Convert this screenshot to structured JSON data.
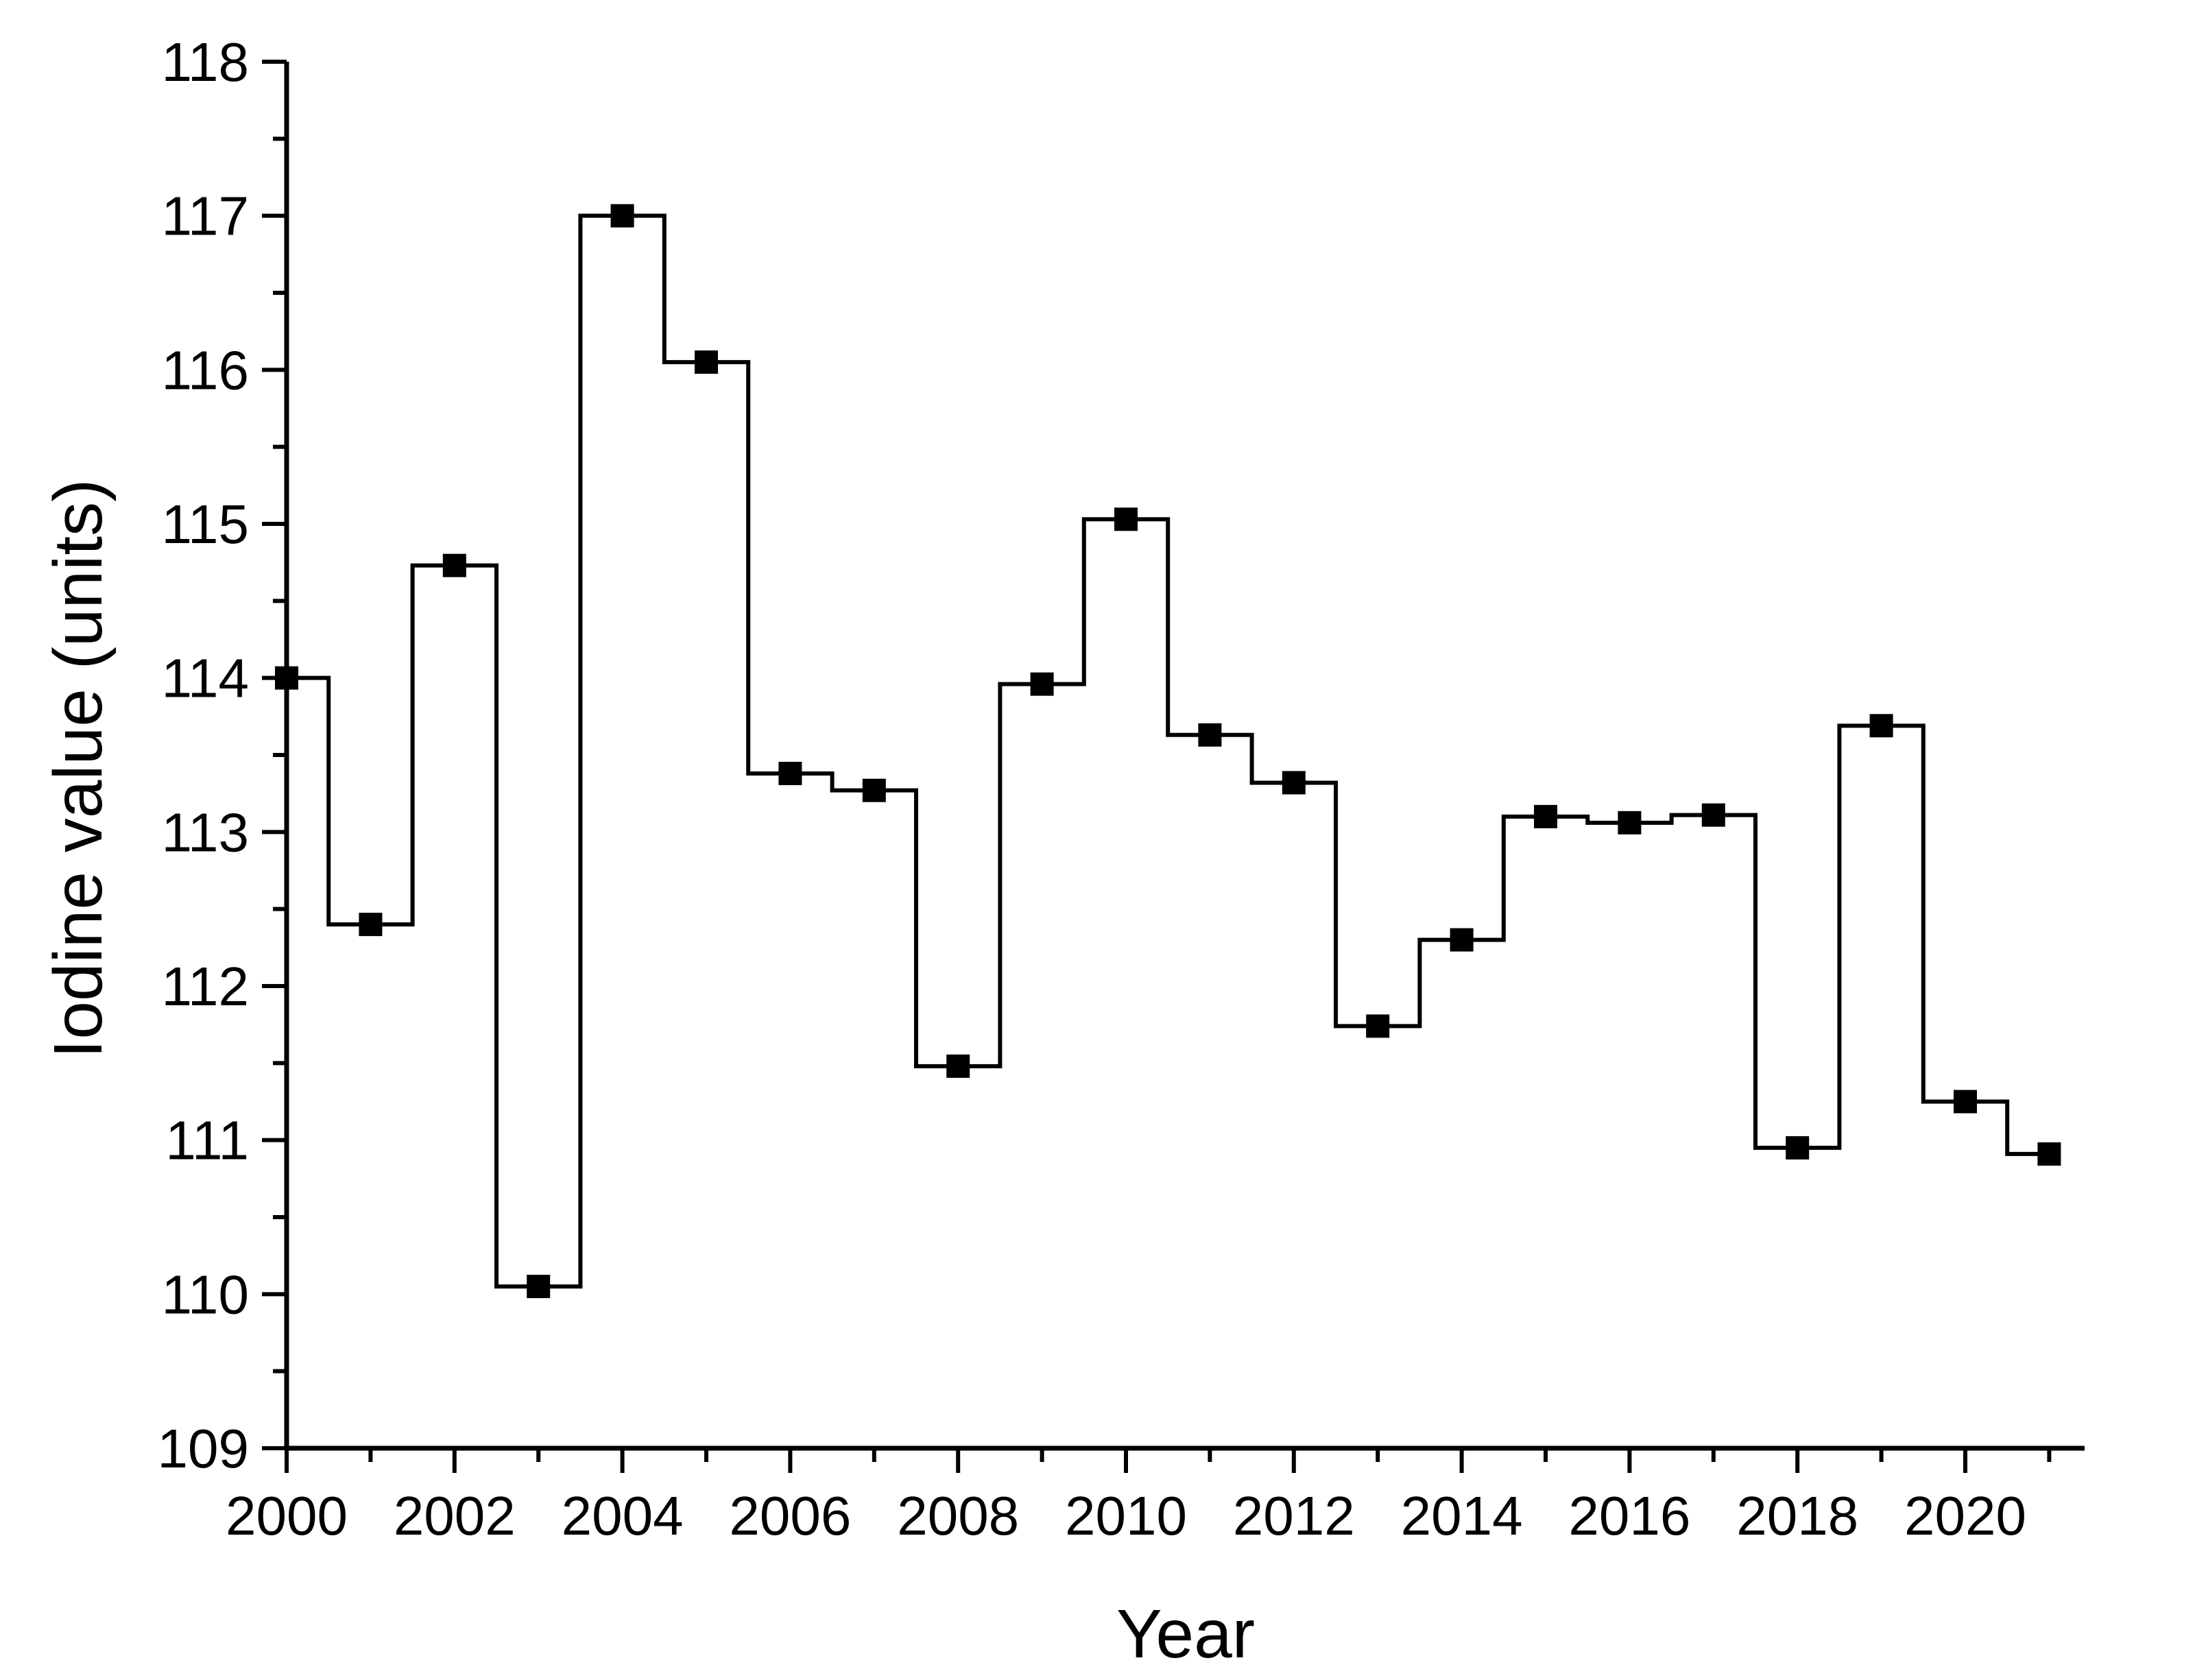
{
  "chart_data": {
    "type": "line",
    "style": "step-center",
    "xlabel": "Year",
    "ylabel": "Iodine value (units)",
    "xlim": [
      2000,
      2021.5
    ],
    "ylim": [
      109,
      118
    ],
    "x_ticks": [
      2000,
      2002,
      2004,
      2006,
      2008,
      2010,
      2012,
      2014,
      2016,
      2018,
      2020
    ],
    "y_ticks": [
      109,
      110,
      111,
      112,
      113,
      114,
      115,
      116,
      117,
      118
    ],
    "grid": false,
    "legend": "none",
    "marker": "square",
    "line_color": "#000000",
    "marker_color": "#000000",
    "series": [
      {
        "x": [
          2000,
          2001,
          2002,
          2003,
          2004,
          2005,
          2006,
          2007,
          2008,
          2009,
          2010,
          2011,
          2012,
          2013,
          2014,
          2015,
          2016,
          2017,
          2018,
          2019,
          2020,
          2021
        ],
        "values": [
          114.0,
          112.4,
          114.73,
          110.05,
          117.0,
          116.05,
          113.38,
          113.27,
          111.48,
          113.96,
          115.03,
          113.63,
          113.32,
          111.74,
          112.3,
          113.1,
          113.06,
          113.11,
          110.95,
          113.69,
          111.25,
          110.91
        ]
      }
    ]
  }
}
